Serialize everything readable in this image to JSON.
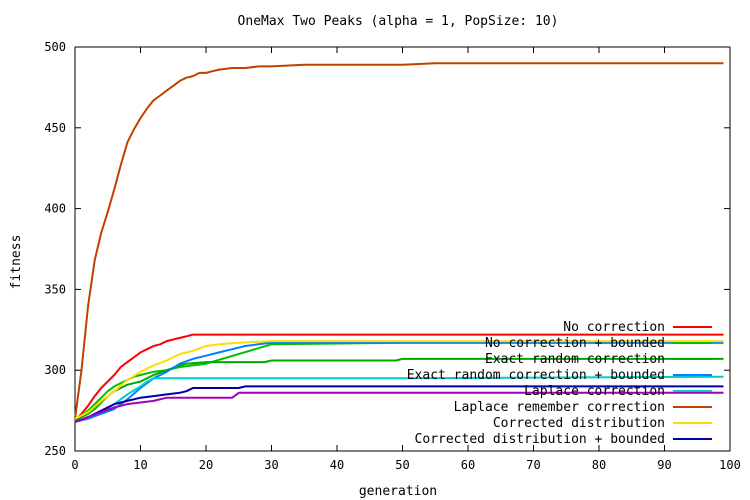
{
  "chart_data": {
    "type": "line",
    "title": "OneMax Two Peaks (alpha = 1, PopSize: 10)",
    "xlabel": "generation",
    "ylabel": "fitness",
    "xlim": [
      0,
      100
    ],
    "ylim": [
      250,
      500
    ],
    "xticks": [
      0,
      10,
      20,
      30,
      40,
      50,
      60,
      70,
      80,
      90,
      100
    ],
    "yticks": [
      250,
      300,
      350,
      400,
      450,
      500
    ],
    "grid": false,
    "legend_position": "bottom-right",
    "series": [
      {
        "name": "No correction",
        "color": "#ff0000",
        "points": [
          [
            0,
            269
          ],
          [
            1,
            273
          ],
          [
            2,
            278
          ],
          [
            3,
            284
          ],
          [
            4,
            289
          ],
          [
            5,
            293
          ],
          [
            6,
            297
          ],
          [
            7,
            302
          ],
          [
            8,
            305
          ],
          [
            9,
            308
          ],
          [
            10,
            311
          ],
          [
            11,
            313
          ],
          [
            12,
            315
          ],
          [
            13,
            316
          ],
          [
            14,
            318
          ],
          [
            15,
            319
          ],
          [
            16,
            320
          ],
          [
            17,
            321
          ],
          [
            18,
            322
          ],
          [
            25,
            322
          ],
          [
            50,
            322
          ],
          [
            99,
            322
          ]
        ]
      },
      {
        "name": "No correction + bounded",
        "color": "#00c000",
        "points": [
          [
            0,
            270
          ],
          [
            1,
            272
          ],
          [
            2,
            275
          ],
          [
            3,
            279
          ],
          [
            4,
            283
          ],
          [
            5,
            287
          ],
          [
            6,
            290
          ],
          [
            7,
            292
          ],
          [
            8,
            294
          ],
          [
            9,
            296
          ],
          [
            10,
            297
          ],
          [
            12,
            299
          ],
          [
            14,
            300
          ],
          [
            16,
            302
          ],
          [
            20,
            304
          ],
          [
            30,
            316
          ],
          [
            50,
            317
          ],
          [
            99,
            317
          ]
        ]
      },
      {
        "name": "Exact random correction",
        "color": "#00aa00",
        "points": [
          [
            0,
            269
          ],
          [
            1,
            271
          ],
          [
            2,
            273
          ],
          [
            3,
            276
          ],
          [
            4,
            280
          ],
          [
            5,
            284
          ],
          [
            6,
            287
          ],
          [
            7,
            289
          ],
          [
            8,
            291
          ],
          [
            10,
            293
          ],
          [
            12,
            297
          ],
          [
            14,
            300
          ],
          [
            16,
            303
          ],
          [
            17,
            304
          ],
          [
            20,
            305
          ],
          [
            29,
            305
          ],
          [
            30,
            306
          ],
          [
            49,
            306
          ],
          [
            50,
            307
          ],
          [
            99,
            307
          ]
        ]
      },
      {
        "name": "Exact random correction + bounded",
        "color": "#0080ff",
        "points": [
          [
            0,
            268
          ],
          [
            2,
            270
          ],
          [
            4,
            273
          ],
          [
            6,
            276
          ],
          [
            8,
            282
          ],
          [
            10,
            289
          ],
          [
            12,
            295
          ],
          [
            14,
            299
          ],
          [
            16,
            304
          ],
          [
            18,
            307
          ],
          [
            20,
            309
          ],
          [
            22,
            311
          ],
          [
            24,
            313
          ],
          [
            26,
            315
          ],
          [
            28,
            316
          ],
          [
            30,
            317
          ],
          [
            33,
            317
          ],
          [
            99,
            317
          ]
        ]
      },
      {
        "name": "Laplace correction",
        "color": "#00cccc",
        "points": [
          [
            0,
            268
          ],
          [
            2,
            271
          ],
          [
            4,
            274
          ],
          [
            6,
            279
          ],
          [
            8,
            285
          ],
          [
            10,
            290
          ],
          [
            11,
            293
          ],
          [
            12,
            295
          ],
          [
            20,
            295
          ],
          [
            50,
            295
          ],
          [
            99,
            296
          ]
        ]
      },
      {
        "name": "Laplace remember correction",
        "color": "#c04000",
        "points": [
          [
            0,
            270
          ],
          [
            1,
            300
          ],
          [
            2,
            340
          ],
          [
            3,
            368
          ],
          [
            4,
            385
          ],
          [
            5,
            398
          ],
          [
            6,
            412
          ],
          [
            7,
            427
          ],
          [
            8,
            441
          ],
          [
            9,
            449
          ],
          [
            10,
            456
          ],
          [
            11,
            462
          ],
          [
            12,
            467
          ],
          [
            13,
            470
          ],
          [
            14,
            473
          ],
          [
            15,
            476
          ],
          [
            16,
            479
          ],
          [
            17,
            481
          ],
          [
            18,
            482
          ],
          [
            19,
            484
          ],
          [
            20,
            484
          ],
          [
            21,
            485
          ],
          [
            22,
            486
          ],
          [
            24,
            487
          ],
          [
            26,
            487
          ],
          [
            28,
            488
          ],
          [
            30,
            488
          ],
          [
            35,
            489
          ],
          [
            40,
            489
          ],
          [
            50,
            489
          ],
          [
            55,
            490
          ],
          [
            60,
            490
          ],
          [
            70,
            490
          ],
          [
            80,
            490
          ],
          [
            90,
            490
          ],
          [
            99,
            490
          ]
        ]
      },
      {
        "name": "Corrected distribution",
        "color": "#ffdd00",
        "points": [
          [
            0,
            270
          ],
          [
            2,
            274
          ],
          [
            4,
            281
          ],
          [
            6,
            287
          ],
          [
            8,
            294
          ],
          [
            10,
            299
          ],
          [
            12,
            303
          ],
          [
            14,
            306
          ],
          [
            16,
            310
          ],
          [
            18,
            312
          ],
          [
            20,
            315
          ],
          [
            22,
            316
          ],
          [
            25,
            317
          ],
          [
            30,
            318
          ],
          [
            50,
            318
          ],
          [
            99,
            318
          ]
        ]
      },
      {
        "name": "Corrected distribution + bounded",
        "color": "#0000a0",
        "points": [
          [
            0,
            268
          ],
          [
            2,
            271
          ],
          [
            4,
            275
          ],
          [
            6,
            279
          ],
          [
            8,
            281
          ],
          [
            10,
            283
          ],
          [
            12,
            284
          ],
          [
            14,
            285
          ],
          [
            16,
            286
          ],
          [
            17,
            287
          ],
          [
            18,
            289
          ],
          [
            25,
            289
          ],
          [
            26,
            290
          ],
          [
            50,
            290
          ],
          [
            99,
            290
          ]
        ]
      },
      {
        "name": "",
        "color": "#a000c0",
        "points": [
          [
            0,
            268
          ],
          [
            2,
            271
          ],
          [
            4,
            274
          ],
          [
            6,
            277
          ],
          [
            8,
            279
          ],
          [
            10,
            280
          ],
          [
            12,
            281
          ],
          [
            14,
            283
          ],
          [
            17,
            283
          ],
          [
            24,
            283
          ],
          [
            25,
            286
          ],
          [
            50,
            286
          ],
          [
            99,
            286
          ]
        ]
      }
    ]
  }
}
